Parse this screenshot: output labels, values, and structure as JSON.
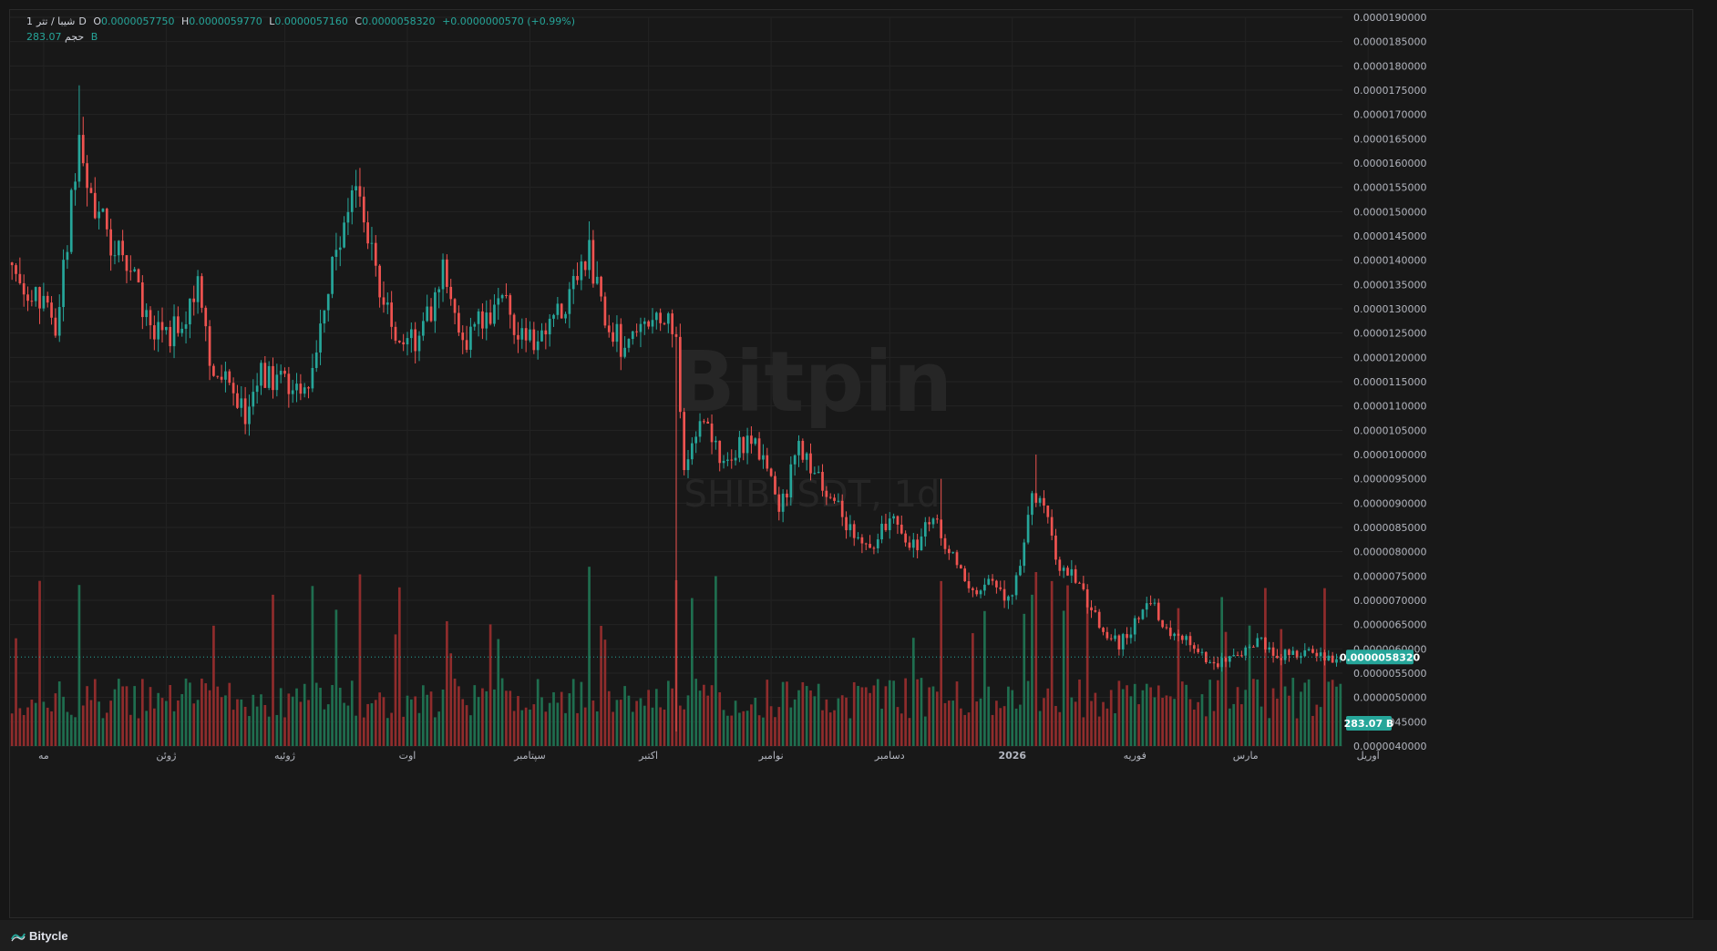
{
  "legend": {
    "symbol": "شیبا / تتر",
    "interval": "1",
    "interval_suffix": "D",
    "open_key": "O",
    "open": "0.0000057750",
    "high_key": "H",
    "high": "0.0000059770",
    "low_key": "L",
    "low": "0.0000057160",
    "close_key": "C",
    "close": "0.0000058320",
    "change": "+0.0000000570 (+0.99%)",
    "volume_label": "حجم",
    "volume": "283.07 B"
  },
  "watermark": {
    "brand": "Bitpin",
    "ticker": "SHIBUSDT, 1d"
  },
  "footer": {
    "brand": "Bitycle",
    "logo_icon": "bitycle-logo-icon"
  },
  "colors": {
    "up": "#26a69a",
    "down": "#ef5350",
    "up_volume": "#1f6e4f",
    "down_volume": "#8f2c2c",
    "background": "#181818",
    "grid": "#232323",
    "price_line": "#26a69a"
  },
  "chart_data": {
    "type": "candlestick",
    "y_axis": {
      "min": 4e-06,
      "max": 1.9e-05,
      "step": 5e-07,
      "tick_labels": [
        "0.0000190000",
        "0.0000185000",
        "0.0000180000",
        "0.0000175000",
        "0.0000170000",
        "0.0000165000",
        "0.0000160000",
        "0.0000155000",
        "0.0000150000",
        "0.0000145000",
        "0.0000140000",
        "0.0000135000",
        "0.0000130000",
        "0.0000125000",
        "0.0000120000",
        "0.0000115000",
        "0.0000110000",
        "0.0000105000",
        "0.0000100000",
        "0.0000095000",
        "0.0000090000",
        "0.0000085000",
        "0.0000080000",
        "0.0000075000",
        "0.0000070000",
        "0.0000065000",
        "0.0000060000",
        "0.0000055000",
        "0.0000050000",
        "0.0000045000",
        "0.0000040000"
      ]
    },
    "x_axis": {
      "labels": [
        {
          "text": "مه",
          "day": 8
        },
        {
          "text": "ژوئن",
          "day": 39
        },
        {
          "text": "ژوئیه",
          "day": 69
        },
        {
          "text": "اوت",
          "day": 100
        },
        {
          "text": "سپتامبر",
          "day": 131
        },
        {
          "text": "اکتبر",
          "day": 161
        },
        {
          "text": "نوامبر",
          "day": 192
        },
        {
          "text": "دسامبر",
          "day": 222
        },
        {
          "text": "2026",
          "day": 253
        },
        {
          "text": "فوریه",
          "day": 284
        },
        {
          "text": "مارس",
          "day": 312
        },
        {
          "text": "آوریل",
          "day": 343
        }
      ],
      "day_count": 337
    },
    "last_price": 5.832e-06,
    "last_price_label": "0.0000058320",
    "last_volume_label": "283.07 B",
    "anchors": [
      [
        0,
        13.9
      ],
      [
        6,
        13.3
      ],
      [
        11,
        12.7
      ],
      [
        14,
        14.5
      ],
      [
        17,
        16.6
      ],
      [
        21,
        15.1
      ],
      [
        25,
        14.4
      ],
      [
        30,
        13.9
      ],
      [
        34,
        12.8
      ],
      [
        40,
        12.4
      ],
      [
        47,
        13.4
      ],
      [
        50,
        11.9
      ],
      [
        55,
        11.7
      ],
      [
        59,
        10.7
      ],
      [
        63,
        11.7
      ],
      [
        69,
        11.4
      ],
      [
        75,
        11.6
      ],
      [
        80,
        13.5
      ],
      [
        86,
        15.6
      ],
      [
        90,
        14.4
      ],
      [
        95,
        13.0
      ],
      [
        99,
        12.2
      ],
      [
        104,
        12.6
      ],
      [
        109,
        13.7
      ],
      [
        113,
        12.3
      ],
      [
        119,
        12.8
      ],
      [
        124,
        13.3
      ],
      [
        129,
        12.3
      ],
      [
        135,
        12.5
      ],
      [
        141,
        13.2
      ],
      [
        146,
        14.1
      ],
      [
        150,
        12.9
      ],
      [
        155,
        12.1
      ],
      [
        160,
        12.5
      ],
      [
        164,
        12.9
      ],
      [
        168,
        12.4
      ],
      [
        170,
        9.8
      ],
      [
        175,
        10.6
      ],
      [
        180,
        9.9
      ],
      [
        187,
        10.3
      ],
      [
        191,
        9.9
      ],
      [
        194,
        8.8
      ],
      [
        199,
        10.1
      ],
      [
        204,
        9.6
      ],
      [
        208,
        9.0
      ],
      [
        213,
        8.4
      ],
      [
        217,
        7.9
      ],
      [
        222,
        8.7
      ],
      [
        228,
        8.1
      ],
      [
        233,
        8.6
      ],
      [
        238,
        8.0
      ],
      [
        242,
        7.2
      ],
      [
        248,
        7.3
      ],
      [
        252,
        7.0
      ],
      [
        255,
        7.8
      ],
      [
        258,
        9.2
      ],
      [
        262,
        8.7
      ],
      [
        264,
        7.8
      ],
      [
        269,
        7.4
      ],
      [
        274,
        6.6
      ],
      [
        280,
        6.1
      ],
      [
        285,
        6.6
      ],
      [
        288,
        6.9
      ],
      [
        293,
        6.4
      ],
      [
        298,
        6.1
      ],
      [
        303,
        5.6
      ],
      [
        307,
        5.7
      ],
      [
        312,
        6.0
      ],
      [
        316,
        6.1
      ],
      [
        321,
        5.8
      ],
      [
        326,
        6.0
      ],
      [
        331,
        5.9
      ],
      [
        336,
        5.83
      ]
    ],
    "spikes": [
      {
        "day": 17,
        "high": 17.6
      },
      {
        "day": 88,
        "high": 15.9
      },
      {
        "day": 146,
        "high": 14.8
      },
      {
        "day": 168,
        "low": 4.3
      },
      {
        "day": 259,
        "high": 10.0
      },
      {
        "day": 235,
        "high": 9.5
      }
    ],
    "price_unit_scale": 1e-06
  }
}
